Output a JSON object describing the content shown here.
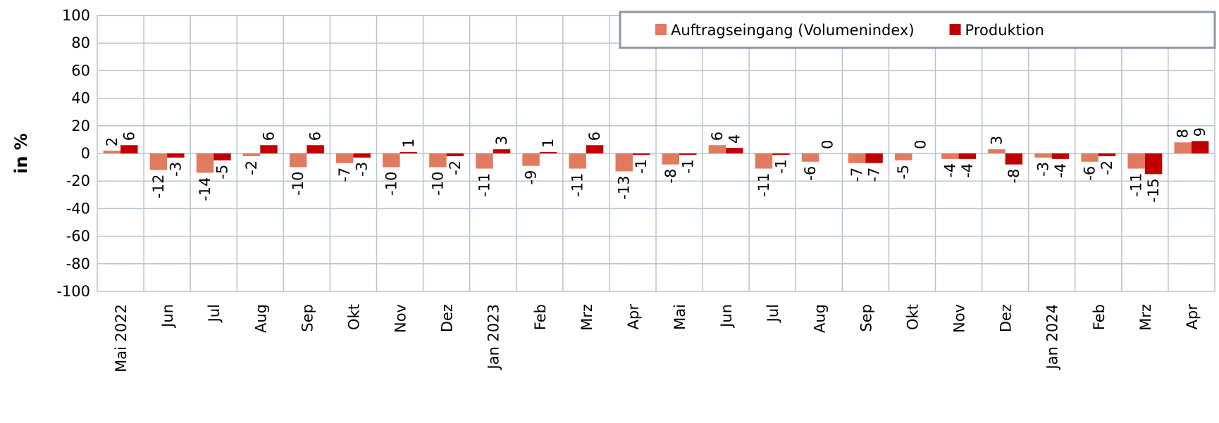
{
  "chart_data": {
    "type": "bar",
    "y_label": "in %",
    "categories": [
      "Mai 2022",
      "Jun",
      "Jul",
      "Aug",
      "Sep",
      "Okt",
      "Nov",
      "Dez",
      "Jan 2023",
      "Feb",
      "Mrz",
      "Apr",
      "Mai",
      "Jun",
      "Jul",
      "Aug",
      "Sep",
      "Okt",
      "Nov",
      "Dez",
      "Jan 2024",
      "Feb",
      "Mrz",
      "Apr"
    ],
    "series": [
      {
        "name": "Auftragseingang (Volumenindex)",
        "color": "#e07b60",
        "values": [
          2,
          -12,
          -14,
          -2,
          -10,
          -7,
          -10,
          -10,
          -11,
          -9,
          -11,
          -13,
          -8,
          6,
          -11,
          -6,
          -7,
          -5,
          -4,
          3,
          -3,
          -6,
          -11,
          8
        ]
      },
      {
        "name": "Produktion",
        "color": "#c00000",
        "values": [
          6,
          -3,
          -5,
          6,
          6,
          -3,
          1,
          -2,
          3,
          1,
          6,
          -1,
          -1,
          4,
          -1,
          0,
          -7,
          0,
          -4,
          -8,
          -4,
          -2,
          -15,
          9
        ]
      }
    ],
    "ylim": [
      -100,
      100
    ],
    "yticks": [
      -100,
      -80,
      -60,
      -40,
      -20,
      0,
      20,
      40,
      60,
      80,
      100
    ],
    "grid": true,
    "legend": "top-right"
  }
}
